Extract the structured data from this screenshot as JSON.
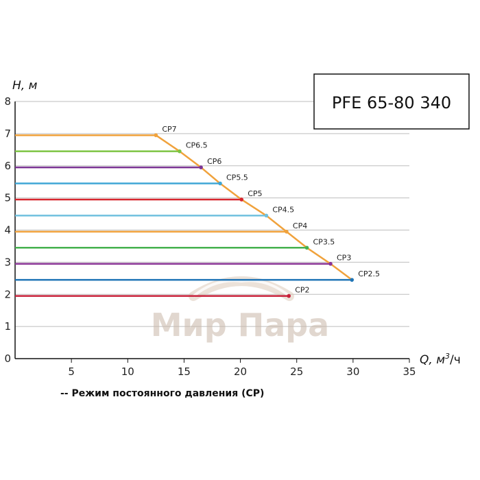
{
  "chart_data": {
    "type": "line",
    "model_title": "PFE 65-80 340",
    "y_axis_title": "H, м",
    "x_axis_title": "Q, м",
    "x_axis_unit_sup": "3",
    "x_axis_unit_tail": "/ч",
    "xlim": [
      0,
      35
    ],
    "ylim": [
      0,
      8
    ],
    "x_ticks": [
      5,
      10,
      15,
      20,
      25,
      30,
      35
    ],
    "y_ticks": [
      0,
      1,
      2,
      3,
      4,
      5,
      6,
      7,
      8
    ],
    "grid": "horizontal",
    "legend_text": "-- Режим постоянного давления (CP)",
    "watermark": "Мир Пара",
    "envelope": {
      "color": "#f0a23c",
      "x": [
        12.5,
        14.6,
        16.5,
        18.2,
        20.1,
        22.3,
        24.1,
        25.9,
        28.0,
        29.9
      ],
      "y": [
        6.95,
        6.45,
        5.95,
        5.45,
        4.95,
        4.45,
        3.95,
        3.45,
        2.95,
        2.45
      ]
    },
    "series": [
      {
        "name": "CP7",
        "head": 6.95,
        "q_max": 12.5,
        "color": "#f0a23c"
      },
      {
        "name": "CP6.5",
        "head": 6.45,
        "q_max": 14.6,
        "color": "#7dc442"
      },
      {
        "name": "CP6",
        "head": 5.95,
        "q_max": 16.5,
        "color": "#7b3594"
      },
      {
        "name": "CP5.5",
        "head": 5.45,
        "q_max": 18.2,
        "color": "#3ea6d6"
      },
      {
        "name": "CP5",
        "head": 4.95,
        "q_max": 20.1,
        "color": "#d8262e"
      },
      {
        "name": "CP4.5",
        "head": 4.45,
        "q_max": 22.3,
        "color": "#6fc0de"
      },
      {
        "name": "CP4",
        "head": 3.95,
        "q_max": 24.1,
        "color": "#f0a23c"
      },
      {
        "name": "CP3.5",
        "head": 3.45,
        "q_max": 25.9,
        "color": "#45b14e"
      },
      {
        "name": "CP3",
        "head": 2.95,
        "q_max": 28.0,
        "color": "#8a3596"
      },
      {
        "name": "CP2.5",
        "head": 2.45,
        "q_max": 29.9,
        "color": "#1f74b6"
      },
      {
        "name": "CP2",
        "head": 1.95,
        "q_max": 24.3,
        "color": "#c8213a"
      }
    ]
  }
}
